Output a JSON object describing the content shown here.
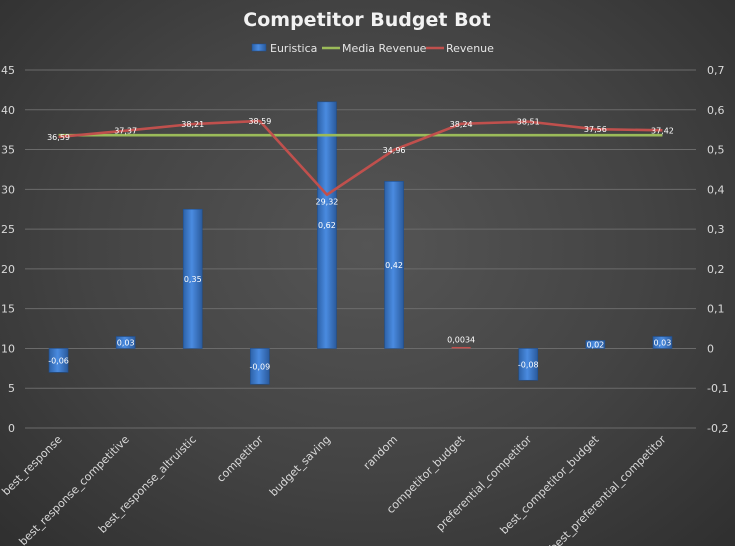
{
  "chart_data": {
    "type": "bar",
    "title": "Competitor Budget Bot",
    "categories": [
      "best_response",
      "best_response_competitive",
      "best_response_altruistic",
      "competitor",
      "budget_saving",
      "random",
      "competitor_budget",
      "preferential_competitor",
      "best_competitor_budget",
      "best_preferential_competitor"
    ],
    "series": [
      {
        "name": "Euristica",
        "type": "bar",
        "axis": "right",
        "values": [
          -0.06,
          0.03,
          0.35,
          -0.09,
          0.62,
          0.42,
          0.0034,
          -0.08,
          0.02,
          0.03
        ],
        "labels": [
          "-0,06",
          "0,03",
          "0,35",
          "-0,09",
          "0,62",
          "0,42",
          "0,0034",
          "-0,08",
          "0,02",
          "0,03"
        ],
        "color": "#3a7bd5"
      },
      {
        "name": "Media Revenue",
        "type": "line",
        "axis": "left",
        "values": [
          36.8,
          36.8,
          36.8,
          36.8,
          36.8,
          36.8,
          36.8,
          36.8,
          36.8,
          36.8
        ],
        "color": "#9bbb59"
      },
      {
        "name": "Revenue",
        "type": "line",
        "axis": "left",
        "values": [
          36.59,
          37.37,
          38.21,
          38.59,
          29.32,
          34.96,
          38.24,
          38.51,
          37.56,
          37.42
        ],
        "labels": [
          "36,59",
          "37,37",
          "38,21",
          "38,59",
          "29,32",
          "34,96",
          "38,24",
          "38,51",
          "37,56",
          "37,42"
        ],
        "color": "#c0504d"
      }
    ],
    "y_left": {
      "min": 0,
      "max": 45,
      "step": 5,
      "ticks": [
        "0",
        "5",
        "10",
        "15",
        "20",
        "25",
        "30",
        "35",
        "40",
        "45"
      ]
    },
    "y_right": {
      "min": -0.2,
      "max": 0.7,
      "step": 0.1,
      "ticks": [
        "-0,2",
        "-0,1",
        "0",
        "0,1",
        "0,2",
        "0,3",
        "0,4",
        "0,5",
        "0,6",
        "0,7"
      ]
    },
    "grid": true,
    "legend_position": "top"
  }
}
